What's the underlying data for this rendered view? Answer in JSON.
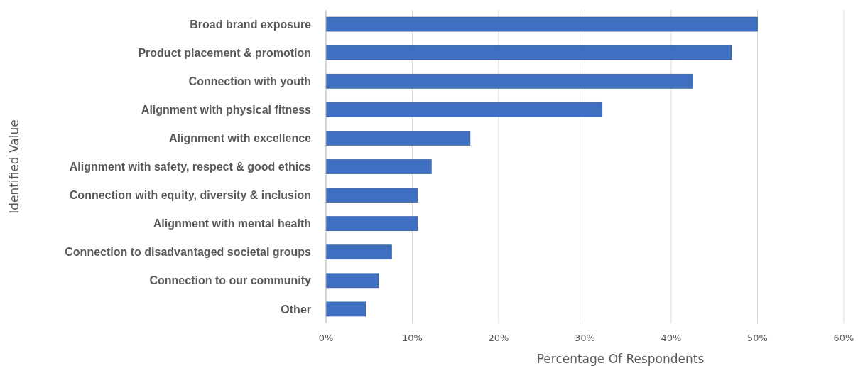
{
  "chart_data": {
    "type": "bar",
    "orientation": "horizontal",
    "xlabel": "Percentage Of Respondents",
    "ylabel": "Identified Value",
    "categories": [
      "Broad brand exposure",
      "Product placement & promotion",
      "Connection with youth",
      "Alignment with physical fitness",
      "Alignment with excellence",
      "Alignment with safety, respect & good ethics",
      "Connection with equity, diversity & inclusion",
      "Alignment with mental health",
      "Connection to disadvantaged societal groups",
      "Connection to our community",
      "Other"
    ],
    "values": [
      50,
      47,
      42.5,
      32,
      16.7,
      12.2,
      10.6,
      10.6,
      7.6,
      6.1,
      4.6
    ],
    "color": "#3f6fc0",
    "xlim": [
      0,
      60
    ],
    "xticks": [
      {
        "value": 0,
        "label": "0%"
      },
      {
        "value": 10,
        "label": "10%"
      },
      {
        "value": 20,
        "label": "20%"
      },
      {
        "value": 30,
        "label": "30%"
      },
      {
        "value": 40,
        "label": "40%"
      },
      {
        "value": 50,
        "label": "50%"
      },
      {
        "value": 60,
        "label": "60%"
      }
    ],
    "grid": "x"
  }
}
